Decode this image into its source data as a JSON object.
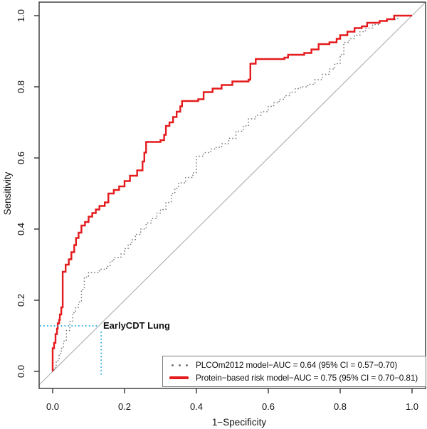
{
  "chart_data": {
    "type": "line",
    "title": "",
    "xlabel": "1−Specificity",
    "ylabel": "Sensitivity",
    "xlim": [
      0.0,
      1.0
    ],
    "ylim": [
      0.0,
      1.0
    ],
    "xticks": [
      0.0,
      0.2,
      0.4,
      0.6,
      0.8,
      1.0
    ],
    "yticks": [
      0.0,
      0.2,
      0.4,
      0.6,
      0.8,
      1.0
    ],
    "grid": false,
    "plot_border_color": "#262626",
    "reference_line": {
      "type": "diagonal-chance-line",
      "from": [
        0,
        0
      ],
      "to": [
        1,
        1
      ],
      "color": "#b3b3b3"
    },
    "annotation": {
      "label": "EarlyCDT Lung",
      "x": 0.135,
      "y": 0.128,
      "color": "#29abe2",
      "style": "dotted-crosshair"
    },
    "legend": {
      "position": "bottom-right",
      "border_color": "#7f7f7f",
      "entries": [
        {
          "label": "PLCOm2012 model−AUC = 0.64 (95% CI = 0.57−0.70)",
          "style": "dotted",
          "color": "#757575"
        },
        {
          "label": "Protein−based risk model−AUC = 0.75 (95% CI = 0.70−0.81)",
          "style": "solid",
          "color": "#e41a1c"
        }
      ]
    },
    "series": [
      {
        "name": "PLCOm2012 model",
        "auc": 0.64,
        "ci_95": "0.57−0.70",
        "style": "dotted",
        "color": "#757575",
        "points": [
          [
            0.0,
            0.0
          ],
          [
            0.004,
            0.01
          ],
          [
            0.01,
            0.03
          ],
          [
            0.018,
            0.05
          ],
          [
            0.024,
            0.065
          ],
          [
            0.03,
            0.085
          ],
          [
            0.038,
            0.115
          ],
          [
            0.048,
            0.14
          ],
          [
            0.056,
            0.165
          ],
          [
            0.064,
            0.18
          ],
          [
            0.072,
            0.195
          ],
          [
            0.08,
            0.23
          ],
          [
            0.088,
            0.265
          ],
          [
            0.1,
            0.278
          ],
          [
            0.13,
            0.287
          ],
          [
            0.15,
            0.295
          ],
          [
            0.16,
            0.31
          ],
          [
            0.17,
            0.32
          ],
          [
            0.19,
            0.33
          ],
          [
            0.2,
            0.345
          ],
          [
            0.21,
            0.357
          ],
          [
            0.22,
            0.37
          ],
          [
            0.23,
            0.385
          ],
          [
            0.245,
            0.4
          ],
          [
            0.26,
            0.417
          ],
          [
            0.275,
            0.43
          ],
          [
            0.29,
            0.445
          ],
          [
            0.3,
            0.455
          ],
          [
            0.315,
            0.475
          ],
          [
            0.33,
            0.5
          ],
          [
            0.34,
            0.515
          ],
          [
            0.35,
            0.53
          ],
          [
            0.37,
            0.545
          ],
          [
            0.39,
            0.558
          ],
          [
            0.4,
            0.605
          ],
          [
            0.42,
            0.615
          ],
          [
            0.44,
            0.625
          ],
          [
            0.455,
            0.63
          ],
          [
            0.47,
            0.64
          ],
          [
            0.49,
            0.655
          ],
          [
            0.51,
            0.675
          ],
          [
            0.53,
            0.69
          ],
          [
            0.545,
            0.71
          ],
          [
            0.565,
            0.72
          ],
          [
            0.58,
            0.73
          ],
          [
            0.6,
            0.745
          ],
          [
            0.615,
            0.755
          ],
          [
            0.63,
            0.765
          ],
          [
            0.645,
            0.775
          ],
          [
            0.66,
            0.785
          ],
          [
            0.675,
            0.795
          ],
          [
            0.69,
            0.8
          ],
          [
            0.71,
            0.807
          ],
          [
            0.73,
            0.82
          ],
          [
            0.75,
            0.835
          ],
          [
            0.77,
            0.85
          ],
          [
            0.785,
            0.865
          ],
          [
            0.8,
            0.89
          ],
          [
            0.81,
            0.925
          ],
          [
            0.825,
            0.935
          ],
          [
            0.84,
            0.945
          ],
          [
            0.855,
            0.955
          ],
          [
            0.87,
            0.965
          ],
          [
            0.89,
            0.975
          ],
          [
            0.91,
            0.985
          ],
          [
            0.93,
            0.99
          ],
          [
            0.96,
            1.0
          ],
          [
            1.0,
            1.0
          ]
        ]
      },
      {
        "name": "Protein-based risk model",
        "auc": 0.75,
        "ci_95": "0.70−0.81",
        "style": "solid",
        "color": "#e41a1c",
        "points": [
          [
            0.0,
            0.0
          ],
          [
            0.0,
            0.065
          ],
          [
            0.004,
            0.08
          ],
          [
            0.008,
            0.105
          ],
          [
            0.012,
            0.12
          ],
          [
            0.014,
            0.135
          ],
          [
            0.018,
            0.145
          ],
          [
            0.02,
            0.16
          ],
          [
            0.024,
            0.18
          ],
          [
            0.028,
            0.28
          ],
          [
            0.036,
            0.3
          ],
          [
            0.045,
            0.315
          ],
          [
            0.052,
            0.335
          ],
          [
            0.06,
            0.355
          ],
          [
            0.065,
            0.375
          ],
          [
            0.072,
            0.39
          ],
          [
            0.08,
            0.41
          ],
          [
            0.09,
            0.42
          ],
          [
            0.1,
            0.435
          ],
          [
            0.11,
            0.445
          ],
          [
            0.12,
            0.455
          ],
          [
            0.13,
            0.465
          ],
          [
            0.145,
            0.475
          ],
          [
            0.155,
            0.5
          ],
          [
            0.17,
            0.51
          ],
          [
            0.185,
            0.52
          ],
          [
            0.2,
            0.535
          ],
          [
            0.215,
            0.55
          ],
          [
            0.235,
            0.565
          ],
          [
            0.25,
            0.59
          ],
          [
            0.255,
            0.615
          ],
          [
            0.26,
            0.645
          ],
          [
            0.3,
            0.65
          ],
          [
            0.31,
            0.665
          ],
          [
            0.315,
            0.69
          ],
          [
            0.325,
            0.7
          ],
          [
            0.335,
            0.715
          ],
          [
            0.345,
            0.73
          ],
          [
            0.355,
            0.745
          ],
          [
            0.36,
            0.76
          ],
          [
            0.405,
            0.765
          ],
          [
            0.42,
            0.785
          ],
          [
            0.445,
            0.795
          ],
          [
            0.47,
            0.805
          ],
          [
            0.5,
            0.815
          ],
          [
            0.545,
            0.82
          ],
          [
            0.55,
            0.865
          ],
          [
            0.565,
            0.878
          ],
          [
            0.645,
            0.882
          ],
          [
            0.655,
            0.89
          ],
          [
            0.7,
            0.895
          ],
          [
            0.72,
            0.905
          ],
          [
            0.74,
            0.92
          ],
          [
            0.77,
            0.925
          ],
          [
            0.79,
            0.935
          ],
          [
            0.8,
            0.945
          ],
          [
            0.82,
            0.955
          ],
          [
            0.84,
            0.965
          ],
          [
            0.86,
            0.97
          ],
          [
            0.875,
            0.98
          ],
          [
            0.91,
            0.985
          ],
          [
            0.93,
            0.99
          ],
          [
            0.95,
            1.0
          ],
          [
            1.0,
            1.0
          ]
        ]
      }
    ]
  }
}
